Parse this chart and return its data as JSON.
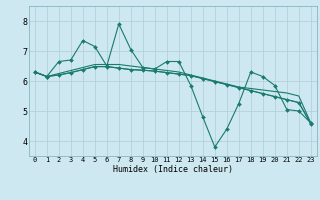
{
  "title": "",
  "xlabel": "Humidex (Indice chaleur)",
  "ylabel": "",
  "background_color": "#cde8f0",
  "grid_color": "#b0cdd8",
  "line_color": "#1a7a6e",
  "xlim": [
    -0.5,
    23.5
  ],
  "ylim": [
    3.5,
    8.5
  ],
  "yticks": [
    4,
    5,
    6,
    7,
    8
  ],
  "xticks": [
    0,
    1,
    2,
    3,
    4,
    5,
    6,
    7,
    8,
    9,
    10,
    11,
    12,
    13,
    14,
    15,
    16,
    17,
    18,
    19,
    20,
    21,
    22,
    23
  ],
  "series": [
    {
      "x": [
        0,
        1,
        2,
        3,
        4,
        5,
        6,
        7,
        8,
        9,
        10,
        11,
        12,
        13,
        14,
        15,
        16,
        17,
        18,
        19,
        20,
        21,
        22,
        23
      ],
      "y": [
        6.3,
        6.15,
        6.25,
        6.35,
        6.45,
        6.55,
        6.55,
        6.55,
        6.5,
        6.45,
        6.4,
        6.35,
        6.3,
        6.2,
        6.1,
        6.0,
        5.9,
        5.8,
        5.75,
        5.7,
        5.65,
        5.6,
        5.5,
        4.6
      ],
      "marker": null,
      "linewidth": 0.8
    },
    {
      "x": [
        0,
        1,
        2,
        3,
        4,
        5,
        6,
        7,
        8,
        9,
        10,
        11,
        12,
        13,
        14,
        15,
        16,
        17,
        18,
        19,
        20,
        21,
        22,
        23
      ],
      "y": [
        6.3,
        6.15,
        6.2,
        6.28,
        6.38,
        6.48,
        6.48,
        6.43,
        6.38,
        6.36,
        6.33,
        6.28,
        6.23,
        6.18,
        6.08,
        5.98,
        5.88,
        5.78,
        5.68,
        5.58,
        5.48,
        5.38,
        5.28,
        4.58
      ],
      "marker": null,
      "linewidth": 0.8
    },
    {
      "x": [
        0,
        1,
        2,
        3,
        4,
        5,
        6,
        7,
        8,
        9,
        10,
        11,
        12,
        13,
        14,
        15,
        16,
        17,
        18,
        19,
        20,
        21,
        22,
        23
      ],
      "y": [
        6.3,
        6.15,
        6.65,
        6.7,
        7.35,
        7.15,
        6.5,
        7.9,
        7.05,
        6.45,
        6.4,
        6.65,
        6.65,
        5.85,
        4.8,
        3.8,
        4.4,
        5.25,
        6.3,
        6.15,
        5.85,
        5.05,
        5.0,
        4.6
      ],
      "marker": "D",
      "linewidth": 0.8,
      "markersize": 2.0
    },
    {
      "x": [
        0,
        1,
        2,
        3,
        4,
        5,
        6,
        7,
        8,
        9,
        10,
        11,
        12,
        13,
        14,
        15,
        16,
        17,
        18,
        19,
        20,
        21,
        22,
        23
      ],
      "y": [
        6.3,
        6.15,
        6.2,
        6.28,
        6.38,
        6.48,
        6.48,
        6.43,
        6.38,
        6.36,
        6.33,
        6.28,
        6.23,
        6.18,
        6.08,
        5.98,
        5.88,
        5.78,
        5.68,
        5.58,
        5.48,
        5.38,
        5.28,
        4.58
      ],
      "marker": "D",
      "linewidth": 0.8,
      "markersize": 2.0
    }
  ],
  "xlabel_fontsize": 6,
  "tick_fontsize": 5,
  "fig_width": 3.2,
  "fig_height": 2.0,
  "dpi": 100
}
